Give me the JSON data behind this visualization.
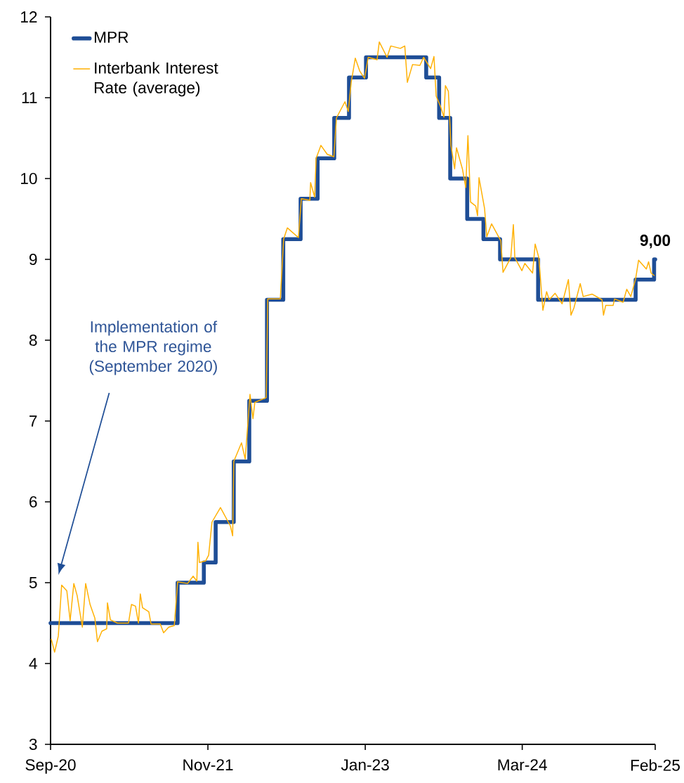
{
  "chart_data": {
    "type": "line",
    "series": [
      {
        "name": "MPR",
        "type": "step",
        "color": "#1f4e96",
        "x": [
          "2020-09-01",
          "2021-08-11",
          "2021-10-21",
          "2021-11-22",
          "2022-01-10",
          "2022-02-21",
          "2022-04-10",
          "2022-05-24",
          "2022-07-10",
          "2022-08-25",
          "2022-10-09",
          "2022-11-18",
          "2023-01-03",
          "2023-06-15",
          "2023-07-20",
          "2023-08-19",
          "2023-10-04",
          "2023-11-17",
          "2024-01-01",
          "2024-04-13",
          "2025-01-02",
          "2025-02-21",
          "2025-02-24"
        ],
        "values": [
          4.5,
          5.0,
          5.25,
          5.75,
          6.5,
          7.25,
          8.5,
          9.25,
          9.75,
          10.25,
          10.75,
          11.25,
          11.5,
          11.25,
          10.75,
          10.0,
          9.5,
          9.25,
          9.0,
          8.5,
          8.75,
          9.0,
          9.0
        ]
      },
      {
        "name": "Interbank Interest Rate (average)",
        "type": "line",
        "color": "#ffb000",
        "x": [
          "2020-09-03",
          "2020-09-12",
          "2020-09-22",
          "2020-10-01",
          "2020-10-15",
          "2020-10-24",
          "2020-11-03",
          "2020-11-12",
          "2020-11-26",
          "2020-12-05",
          "2020-12-17",
          "2020-12-30",
          "2021-01-06",
          "2021-01-18",
          "2021-01-31",
          "2021-02-02",
          "2021-02-10",
          "2021-03-01",
          "2021-03-31",
          "2021-04-08",
          "2021-04-19",
          "2021-04-27",
          "2021-05-02",
          "2021-05-08",
          "2021-05-25",
          "2021-05-31",
          "2021-06-25",
          "2021-07-04",
          "2021-07-18",
          "2021-08-02",
          "2021-08-11",
          "2021-09-07",
          "2021-09-22",
          "2021-10-02",
          "2021-10-05",
          "2021-10-09",
          "2021-10-26",
          "2021-11-03",
          "2021-11-12",
          "2021-12-05",
          "2022-01-01",
          "2022-01-07",
          "2022-01-10",
          "2022-01-31",
          "2022-02-10",
          "2022-02-23",
          "2022-03-03",
          "2022-03-08",
          "2022-04-08",
          "2022-04-12",
          "2022-05-16",
          "2022-05-25",
          "2022-06-04",
          "2022-07-04",
          "2022-07-12",
          "2022-08-04",
          "2022-08-06",
          "2022-08-17",
          "2022-08-21",
          "2022-09-03",
          "2022-09-20",
          "2022-10-08",
          "2022-10-15",
          "2022-11-07",
          "2022-11-16",
          "2022-11-24",
          "2022-12-05",
          "2022-12-17",
          "2022-12-30",
          "2023-01-09",
          "2023-02-02",
          "2023-02-08",
          "2023-03-01",
          "2023-03-11",
          "2023-04-06",
          "2023-04-18",
          "2023-04-25",
          "2023-05-09",
          "2023-05-29",
          "2023-06-08",
          "2023-06-27",
          "2023-07-06",
          "2023-07-12",
          "2023-07-24",
          "2023-08-02",
          "2023-08-06",
          "2023-08-14",
          "2023-08-21",
          "2023-08-31",
          "2023-09-05",
          "2023-09-21",
          "2023-09-30",
          "2023-10-06",
          "2023-10-13",
          "2023-10-27",
          "2023-11-01",
          "2023-11-05",
          "2023-11-20",
          "2023-11-26",
          "2023-12-09",
          "2024-01-03",
          "2024-01-09",
          "2024-01-30",
          "2024-02-06",
          "2024-02-10",
          "2024-02-29",
          "2024-03-08",
          "2024-03-29",
          "2024-04-05",
          "2024-04-15",
          "2024-04-26",
          "2024-05-06",
          "2024-05-13",
          "2024-05-29",
          "2024-06-17",
          "2024-07-04",
          "2024-07-11",
          "2024-07-19",
          "2024-08-05",
          "2024-08-13",
          "2024-09-06",
          "2024-10-03",
          "2024-10-07",
          "2024-10-13",
          "2024-11-02",
          "2024-11-06",
          "2024-11-29",
          "2024-12-09",
          "2024-12-20",
          "2025-01-02",
          "2025-01-10",
          "2025-01-31",
          "2025-02-06",
          "2025-02-13",
          "2025-02-21"
        ],
        "values": [
          4.3,
          4.14,
          4.34,
          4.97,
          4.9,
          4.53,
          4.99,
          4.84,
          4.45,
          4.99,
          4.73,
          4.56,
          4.27,
          4.4,
          4.43,
          4.75,
          4.54,
          4.5,
          4.5,
          4.73,
          4.71,
          4.5,
          4.86,
          4.69,
          4.64,
          4.49,
          4.49,
          4.38,
          4.45,
          4.47,
          5.01,
          4.99,
          5.08,
          5.02,
          5.5,
          5.25,
          5.27,
          5.34,
          5.75,
          5.93,
          5.7,
          5.58,
          6.5,
          6.73,
          6.53,
          7.33,
          7.03,
          7.23,
          7.29,
          8.51,
          8.51,
          9.25,
          9.39,
          9.27,
          9.75,
          9.73,
          9.95,
          9.77,
          10.25,
          10.41,
          10.3,
          10.27,
          10.75,
          10.95,
          10.83,
          11.19,
          11.49,
          11.33,
          11.24,
          11.5,
          11.47,
          11.69,
          11.5,
          11.64,
          11.61,
          11.64,
          11.19,
          11.41,
          11.4,
          11.5,
          11.36,
          11.51,
          11.02,
          10.89,
          10.76,
          11.15,
          11.08,
          10.41,
          10.12,
          10.38,
          10.12,
          9.89,
          10.53,
          9.71,
          9.66,
          9.54,
          10.01,
          9.63,
          9.28,
          9.44,
          9.23,
          8.84,
          9.02,
          9.43,
          9.02,
          8.86,
          8.95,
          8.83,
          9.19,
          9.02,
          8.37,
          8.6,
          8.5,
          8.58,
          8.45,
          8.75,
          8.31,
          8.4,
          8.7,
          8.54,
          8.57,
          8.5,
          8.31,
          8.43,
          8.43,
          8.51,
          8.47,
          8.63,
          8.54,
          8.76,
          8.99,
          8.88,
          8.97,
          8.83,
          8.8
        ]
      }
    ],
    "xlim": [
      "2020-09-01",
      "2025-02-24"
    ],
    "xticks": [
      {
        "value": "2020-09-01",
        "label": "Sep-20"
      },
      {
        "value": "2021-11-01",
        "label": "Nov-21"
      },
      {
        "value": "2023-01-01",
        "label": "Jan-23"
      },
      {
        "value": "2024-03-01",
        "label": "Mar-24"
      },
      {
        "value": "2025-02-24",
        "label": "Feb-25"
      }
    ],
    "ylim": [
      3,
      12
    ],
    "yticks": [
      3,
      4,
      5,
      6,
      7,
      8,
      9,
      10,
      11,
      12
    ],
    "legend": "top left",
    "annotations": [
      "Implementation of the MPR regime (September 2020)",
      {
        "text": "9,00",
        "x": "2025-02-24",
        "y": 9
      }
    ]
  }
}
